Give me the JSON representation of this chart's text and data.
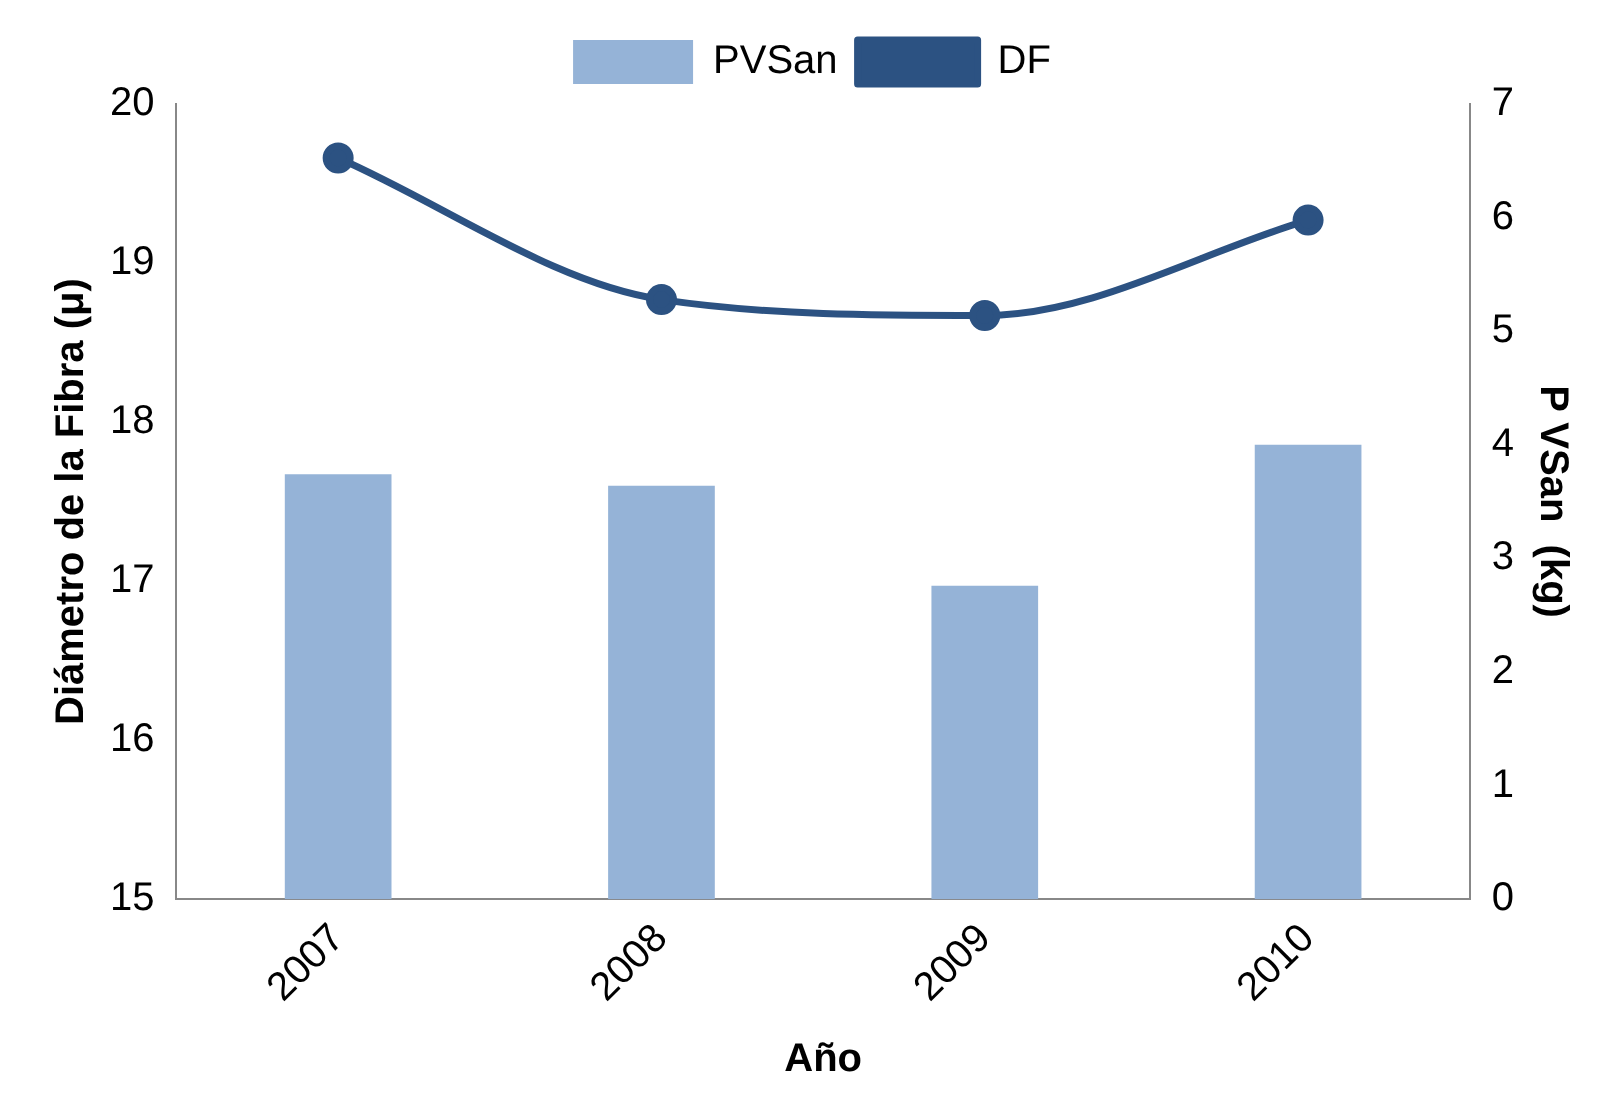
{
  "chart_data": {
    "type": "bar",
    "categories": [
      "2007",
      "2008",
      "2009",
      "2010"
    ],
    "xlabel": "Año",
    "ylabel": "Diámetro de la Fibra (μ)",
    "y2label": "P VSan  (kg)",
    "series": [
      {
        "name": "PVSan",
        "axis": "y2",
        "color": "#95b3d7",
        "values": [
          3.74,
          3.64,
          2.76,
          4.0
        ]
      },
      {
        "name": "DF",
        "type": "line",
        "axis": "y",
        "color": "#2c5282",
        "marker": "circle",
        "values": [
          19.66,
          18.77,
          18.67,
          19.27
        ]
      }
    ],
    "ylim": [
      15,
      20
    ],
    "yticks": [
      15,
      16,
      17,
      18,
      19,
      20
    ],
    "y2lim": [
      0,
      7
    ],
    "y2ticks": [
      0,
      1,
      2,
      3,
      4,
      5,
      6,
      7
    ],
    "grid": false,
    "legend": "top"
  }
}
